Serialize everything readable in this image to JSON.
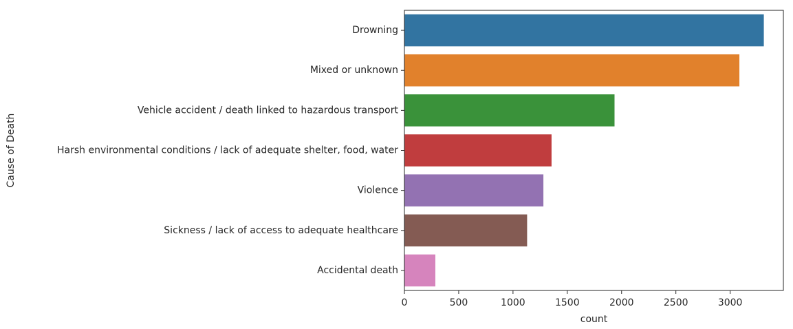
{
  "chart_data": {
    "type": "bar",
    "orientation": "horizontal",
    "title": "",
    "xlabel": "count",
    "ylabel": "Cause of Death",
    "categories": [
      "Drowning",
      "Mixed or unknown",
      "Vehicle accident / death linked to hazardous transport",
      "Harsh environmental conditions / lack of adequate shelter, food, water",
      "Violence",
      "Sickness / lack of access to adequate healthcare",
      "Accidental death"
    ],
    "values": [
      3310,
      3085,
      1935,
      1355,
      1280,
      1130,
      285
    ],
    "colors": [
      "#3274a1",
      "#e1812c",
      "#3a923a",
      "#c03d3e",
      "#9372b2",
      "#845b53",
      "#d684bd"
    ],
    "xlim": [
      0,
      3490
    ],
    "xticks": [
      0,
      500,
      1000,
      1500,
      2000,
      2500,
      3000
    ],
    "grid": false,
    "legend": "none"
  }
}
